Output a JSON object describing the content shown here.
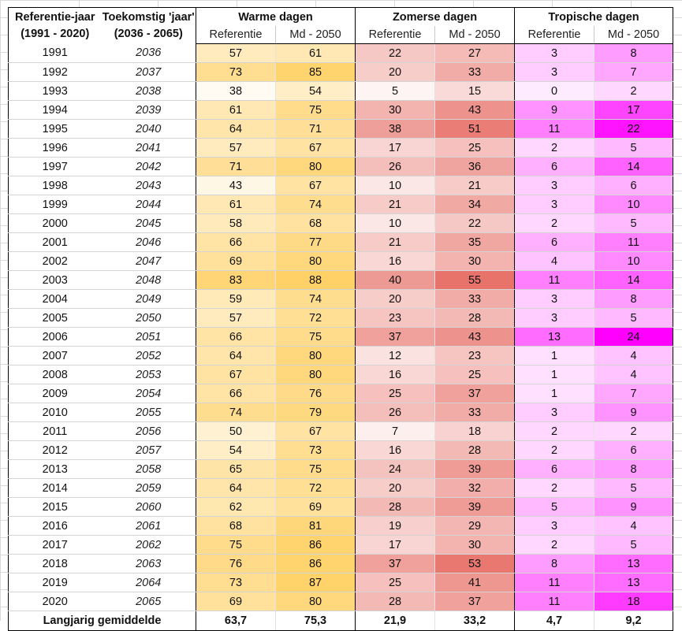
{
  "headers": {
    "col1_line1": "Referentie-jaar",
    "col1_line2": "(1991 - 2020)",
    "col2_line1": "Toekomstig 'jaar'",
    "col2_line2": "(2036 - 2065)",
    "groups": [
      "Warme dagen",
      "Zomerse dagen",
      "Tropische dagen"
    ],
    "sub_ref": "Referentie",
    "sub_md": "Md - 2050"
  },
  "rows": [
    {
      "ref": "1991",
      "fut": "2036",
      "w": [
        "57",
        "61"
      ],
      "z": [
        "22",
        "27"
      ],
      "t": [
        "3",
        "8"
      ]
    },
    {
      "ref": "1992",
      "fut": "2037",
      "w": [
        "73",
        "85"
      ],
      "z": [
        "20",
        "33"
      ],
      "t": [
        "3",
        "7"
      ]
    },
    {
      "ref": "1993",
      "fut": "2038",
      "w": [
        "38",
        "54"
      ],
      "z": [
        "5",
        "15"
      ],
      "t": [
        "0",
        "2"
      ]
    },
    {
      "ref": "1994",
      "fut": "2039",
      "w": [
        "61",
        "75"
      ],
      "z": [
        "30",
        "43"
      ],
      "t": [
        "9",
        "17"
      ]
    },
    {
      "ref": "1995",
      "fut": "2040",
      "w": [
        "64",
        "71"
      ],
      "z": [
        "38",
        "51"
      ],
      "t": [
        "11",
        "22"
      ]
    },
    {
      "ref": "1996",
      "fut": "2041",
      "w": [
        "57",
        "67"
      ],
      "z": [
        "17",
        "25"
      ],
      "t": [
        "2",
        "5"
      ]
    },
    {
      "ref": "1997",
      "fut": "2042",
      "w": [
        "71",
        "80"
      ],
      "z": [
        "26",
        "36"
      ],
      "t": [
        "6",
        "14"
      ]
    },
    {
      "ref": "1998",
      "fut": "2043",
      "w": [
        "43",
        "67"
      ],
      "z": [
        "10",
        "21"
      ],
      "t": [
        "3",
        "6"
      ]
    },
    {
      "ref": "1999",
      "fut": "2044",
      "w": [
        "61",
        "74"
      ],
      "z": [
        "21",
        "34"
      ],
      "t": [
        "3",
        "10"
      ]
    },
    {
      "ref": "2000",
      "fut": "2045",
      "w": [
        "58",
        "68"
      ],
      "z": [
        "10",
        "22"
      ],
      "t": [
        "2",
        "5"
      ]
    },
    {
      "ref": "2001",
      "fut": "2046",
      "w": [
        "66",
        "77"
      ],
      "z": [
        "21",
        "35"
      ],
      "t": [
        "6",
        "11"
      ]
    },
    {
      "ref": "2002",
      "fut": "2047",
      "w": [
        "69",
        "80"
      ],
      "z": [
        "16",
        "30"
      ],
      "t": [
        "4",
        "10"
      ]
    },
    {
      "ref": "2003",
      "fut": "2048",
      "w": [
        "83",
        "88"
      ],
      "z": [
        "40",
        "55"
      ],
      "t": [
        "11",
        "14"
      ]
    },
    {
      "ref": "2004",
      "fut": "2049",
      "w": [
        "59",
        "74"
      ],
      "z": [
        "20",
        "33"
      ],
      "t": [
        "3",
        "8"
      ]
    },
    {
      "ref": "2005",
      "fut": "2050",
      "w": [
        "57",
        "72"
      ],
      "z": [
        "23",
        "28"
      ],
      "t": [
        "3",
        "5"
      ]
    },
    {
      "ref": "2006",
      "fut": "2051",
      "w": [
        "66",
        "75"
      ],
      "z": [
        "37",
        "43"
      ],
      "t": [
        "13",
        "24"
      ]
    },
    {
      "ref": "2007",
      "fut": "2052",
      "w": [
        "64",
        "80"
      ],
      "z": [
        "12",
        "23"
      ],
      "t": [
        "1",
        "4"
      ]
    },
    {
      "ref": "2008",
      "fut": "2053",
      "w": [
        "67",
        "80"
      ],
      "z": [
        "16",
        "25"
      ],
      "t": [
        "1",
        "4"
      ]
    },
    {
      "ref": "2009",
      "fut": "2054",
      "w": [
        "66",
        "76"
      ],
      "z": [
        "25",
        "37"
      ],
      "t": [
        "1",
        "7"
      ]
    },
    {
      "ref": "2010",
      "fut": "2055",
      "w": [
        "74",
        "79"
      ],
      "z": [
        "26",
        "33"
      ],
      "t": [
        "3",
        "9"
      ]
    },
    {
      "ref": "2011",
      "fut": "2056",
      "w": [
        "50",
        "67"
      ],
      "z": [
        "7",
        "18"
      ],
      "t": [
        "2",
        "2"
      ]
    },
    {
      "ref": "2012",
      "fut": "2057",
      "w": [
        "54",
        "73"
      ],
      "z": [
        "16",
        "28"
      ],
      "t": [
        "2",
        "6"
      ]
    },
    {
      "ref": "2013",
      "fut": "2058",
      "w": [
        "65",
        "75"
      ],
      "z": [
        "24",
        "39"
      ],
      "t": [
        "6",
        "8"
      ]
    },
    {
      "ref": "2014",
      "fut": "2059",
      "w": [
        "64",
        "72"
      ],
      "z": [
        "20",
        "32"
      ],
      "t": [
        "2",
        "5"
      ]
    },
    {
      "ref": "2015",
      "fut": "2060",
      "w": [
        "62",
        "69"
      ],
      "z": [
        "28",
        "39"
      ],
      "t": [
        "5",
        "9"
      ]
    },
    {
      "ref": "2016",
      "fut": "2061",
      "w": [
        "68",
        "81"
      ],
      "z": [
        "19",
        "29"
      ],
      "t": [
        "3",
        "4"
      ]
    },
    {
      "ref": "2017",
      "fut": "2062",
      "w": [
        "75",
        "86"
      ],
      "z": [
        "17",
        "30"
      ],
      "t": [
        "2",
        "5"
      ]
    },
    {
      "ref": "2018",
      "fut": "2063",
      "w": [
        "76",
        "86"
      ],
      "z": [
        "37",
        "53"
      ],
      "t": [
        "8",
        "13"
      ]
    },
    {
      "ref": "2019",
      "fut": "2064",
      "w": [
        "73",
        "87"
      ],
      "z": [
        "25",
        "41"
      ],
      "t": [
        "11",
        "13"
      ]
    },
    {
      "ref": "2020",
      "fut": "2065",
      "w": [
        "69",
        "80"
      ],
      "z": [
        "28",
        "37"
      ],
      "t": [
        "11",
        "18"
      ]
    }
  ],
  "footer": {
    "label": "Langjarig gemiddelde",
    "values": [
      "63,7",
      "75,3",
      "21,9",
      "33,2",
      "4,7",
      "9,2"
    ]
  },
  "colors": {
    "warm": "#ffd167",
    "zomers": "#e8736b",
    "tropisch": "#ff00ff",
    "low": "#ffffff"
  },
  "color_scales": {
    "warm": [
      38,
      88
    ],
    "zomers": [
      5,
      55
    ],
    "tropisch": [
      0,
      24
    ]
  }
}
